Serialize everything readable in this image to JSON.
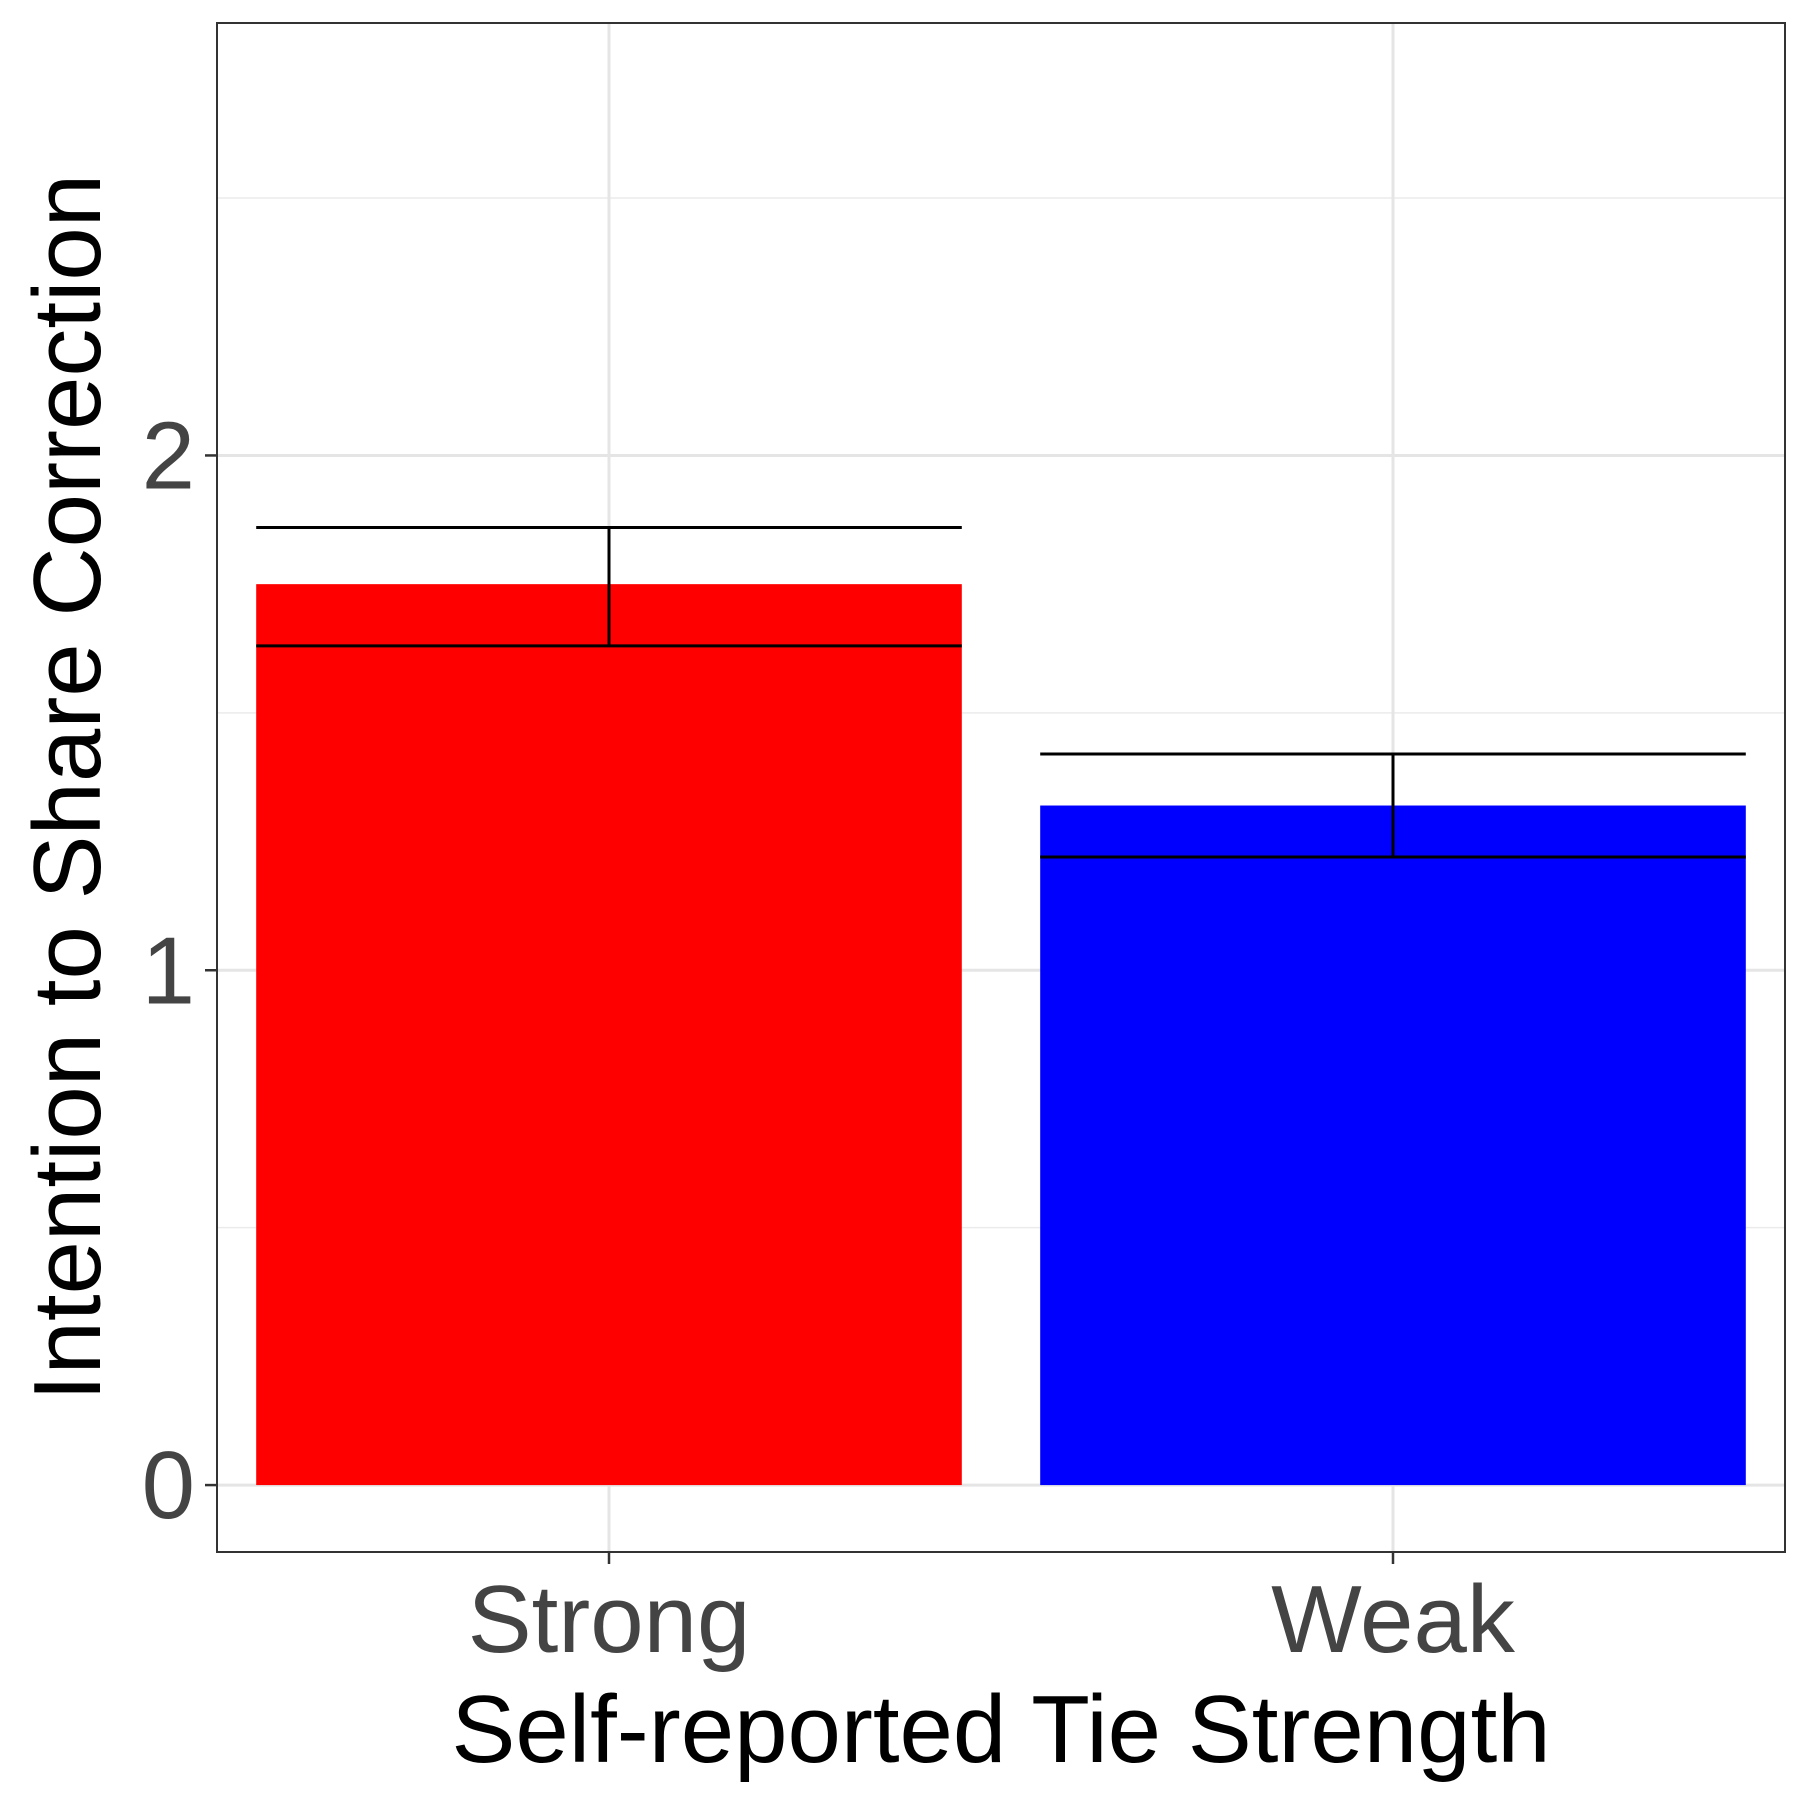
{
  "chart_data": {
    "type": "bar",
    "categories": [
      "Strong",
      "Weak"
    ],
    "values": [
      1.75,
      1.32
    ],
    "error_low": [
      1.63,
      1.22
    ],
    "error_high": [
      1.86,
      1.42
    ],
    "colors": [
      "#ff0000",
      "#0000ff"
    ],
    "xlabel": "Self-reported Tie Strength",
    "ylabel": "Intention to Share Correction",
    "yticks": [
      "0",
      "1",
      "2"
    ],
    "ylim": [
      -0.13,
      2.84
    ],
    "grid": true,
    "legend": "none"
  }
}
